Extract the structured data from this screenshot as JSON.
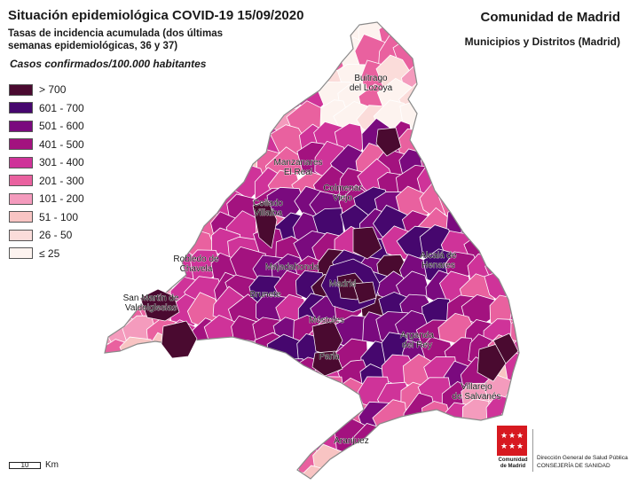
{
  "header": {
    "title": "Situación epidemiológica COVID-19  15/09/2020",
    "subtitle": "Tasas de incidencia acumulada (dos últimas semanas epidemiológicas, 36 y 37)",
    "units": "Casos confirmados/100.000 habitantes",
    "region": "Comunidad de Madrid",
    "scope": "Municipios y Distritos (Madrid)"
  },
  "legend": [
    {
      "label": "> 700",
      "color": "#4a0a30"
    },
    {
      "label": "601 - 700",
      "color": "#46076e"
    },
    {
      "label": "501 - 600",
      "color": "#7a0a7e"
    },
    {
      "label": "401 - 500",
      "color": "#a3127f"
    },
    {
      "label": "301 - 400",
      "color": "#cf3399"
    },
    {
      "label": "201 - 300",
      "color": "#e9619f"
    },
    {
      "label": "101 - 200",
      "color": "#f49bbd"
    },
    {
      "label": "51 - 100",
      "color": "#f8c4c3"
    },
    {
      "label": "26 - 50",
      "color": "#fbdcda"
    },
    {
      "label": "≤ 25",
      "color": "#fdf3ef"
    }
  ],
  "places": [
    {
      "name": "Buitrago\ndel Lozoya",
      "cat": "101 - 200"
    },
    {
      "name": "Manzanares\nEl Real",
      "cat": "301 - 400"
    },
    {
      "name": "Colmenar\nViejo",
      "cat": "601 - 700"
    },
    {
      "name": "Collado\nVillalba",
      "cat": "> 700"
    },
    {
      "name": "Alcalá de\nHenares",
      "cat": "401 - 500"
    },
    {
      "name": "Robledo de\nChavela",
      "cat": "201 - 300"
    },
    {
      "name": "Majadahonda",
      "cat": "401 - 500"
    },
    {
      "name": "Madrid",
      "cat": "> 700"
    },
    {
      "name": "Brunete",
      "cat": "301 - 400"
    },
    {
      "name": "San Martín de\nValdeiglesias",
      "cat": "> 700"
    },
    {
      "name": "Móstoles",
      "cat": "> 700"
    },
    {
      "name": "Arganda\ndel Rey",
      "cat": "601 - 700"
    },
    {
      "name": "Parla",
      "cat": "> 700"
    },
    {
      "name": "Villarejo\nde Salvanés",
      "cat": "501 - 600"
    },
    {
      "name": "Aranjuez",
      "cat": "401 - 500"
    }
  ],
  "scale": {
    "value": "10",
    "unit": "Km"
  },
  "logo": {
    "line1": "Comunidad",
    "line2": "de Madrid"
  },
  "department": {
    "line1": "Dirección General de Salud Pública",
    "line2": "CONSEJERÍA DE SANIDAD"
  }
}
